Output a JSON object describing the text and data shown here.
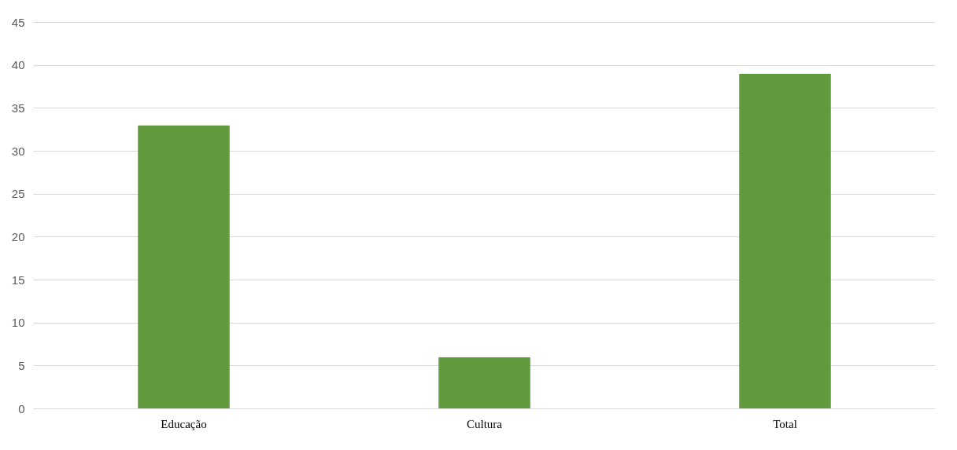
{
  "chart_data": {
    "type": "bar",
    "categories": [
      "Educação",
      "Cultura",
      "Total"
    ],
    "values": [
      33,
      6,
      39
    ],
    "color": "#629b3e",
    "ylim": [
      0,
      45
    ],
    "yticks": [
      0,
      5,
      10,
      15,
      20,
      25,
      30,
      35,
      40,
      45
    ],
    "grid": "y"
  }
}
